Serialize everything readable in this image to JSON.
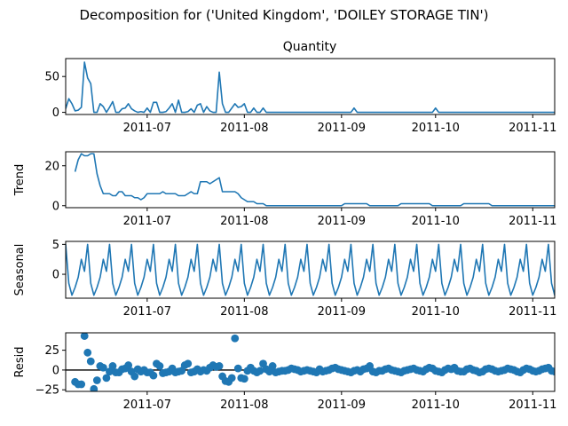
{
  "figure": {
    "suptitle": "Decomposition for ('United Kingdom', 'DOILEY STORAGE TIN')",
    "line_color": "#1f77b4",
    "x_ticks": [
      "2011-07",
      "2011-08",
      "2011-09",
      "2011-10",
      "2011-11"
    ],
    "x_tick_values": [
      "2011-07-01",
      "2011-08-01",
      "2011-09-01",
      "2011-10-01",
      "2011-11-01"
    ]
  },
  "chart_data": [
    {
      "type": "line",
      "title": "Quantity",
      "ylabel": "",
      "x_start": "2011-06-05",
      "x_end": "2011-11-08",
      "xlim": [
        "2011-06-05",
        "2011-11-08"
      ],
      "ylim": [
        -3,
        75
      ],
      "yticks": [
        0,
        50
      ],
      "ytick_labels": [
        "0",
        "50"
      ],
      "series": [
        {
          "values": [
            5,
            19,
            12,
            2,
            3,
            7,
            70,
            48,
            40,
            0,
            0,
            12,
            8,
            0,
            7,
            15,
            0,
            0,
            5,
            6,
            12,
            5,
            2,
            0,
            1,
            0,
            6,
            0,
            14,
            14,
            0,
            0,
            1,
            6,
            12,
            0,
            17,
            0,
            0,
            1,
            5,
            0,
            10,
            12,
            0,
            8,
            2,
            0,
            0,
            56,
            12,
            0,
            0,
            6,
            12,
            7,
            8,
            12,
            0,
            0,
            6,
            0,
            0,
            6,
            0,
            0,
            0,
            0,
            0,
            0,
            0,
            0,
            0,
            0,
            0,
            0,
            0,
            0,
            0,
            0,
            0,
            0,
            0,
            0,
            0,
            0,
            0,
            0,
            0,
            0,
            0,
            0,
            6,
            0,
            0,
            0,
            0,
            0,
            0,
            0,
            0,
            0,
            0,
            0,
            0,
            0,
            0,
            0,
            0,
            0,
            0,
            0,
            0,
            0,
            0,
            0,
            0,
            0,
            6,
            0,
            0,
            0,
            0,
            0,
            0,
            0,
            0,
            0,
            0,
            0,
            0,
            0,
            0,
            0,
            0,
            0,
            0,
            0,
            0,
            0,
            0,
            0,
            0,
            0,
            0,
            0,
            0,
            0,
            0,
            0,
            0,
            0,
            0,
            0,
            0,
            0,
            0,
            0,
            0,
            0,
            0,
            0,
            0,
            0,
            0,
            0,
            0,
            0,
            0,
            0,
            0,
            0,
            0,
            0,
            0,
            0,
            0,
            0,
            0,
            0,
            0,
            0,
            0,
            0,
            0,
            0,
            0,
            0,
            0,
            0,
            0,
            0,
            0,
            0,
            0,
            0,
            0,
            6
          ]
        }
      ]
    },
    {
      "type": "line",
      "title": "",
      "ylabel": "Trend",
      "x_start": "2011-06-08",
      "x_end": "2011-11-05",
      "xlim": [
        "2011-06-05",
        "2011-11-08"
      ],
      "ylim": [
        -1,
        27
      ],
      "yticks": [
        0,
        20
      ],
      "ytick_labels": [
        "0",
        "20"
      ],
      "series": [
        {
          "values": [
            17,
            23,
            26,
            25,
            25,
            26,
            26,
            16,
            10,
            6,
            6,
            6,
            5,
            5,
            7,
            7,
            5,
            5,
            5,
            4,
            4,
            3,
            4,
            6,
            6,
            6,
            6,
            6,
            7,
            6,
            6,
            6,
            6,
            5,
            5,
            5,
            6,
            7,
            6,
            6,
            12,
            12,
            12,
            11,
            12,
            13,
            14,
            7,
            7,
            7,
            7,
            7,
            6,
            4,
            3,
            2,
            2,
            2,
            1,
            1,
            1,
            0,
            0,
            0,
            0,
            0,
            0,
            0,
            0,
            0,
            0,
            0,
            0,
            0,
            0,
            0,
            0,
            0,
            0,
            0,
            0,
            0,
            0,
            0,
            0,
            0,
            1,
            1,
            1,
            1,
            1,
            1,
            1,
            1,
            0,
            0,
            0,
            0,
            0,
            0,
            0,
            0,
            0,
            0,
            1,
            1,
            1,
            1,
            1,
            1,
            1,
            1,
            1,
            1,
            0,
            0,
            0,
            0,
            0,
            0,
            0,
            0,
            0,
            0,
            1,
            1,
            1,
            1,
            1,
            1,
            1,
            1,
            1,
            0,
            0,
            0,
            0,
            0,
            0,
            0,
            0,
            0,
            0,
            0,
            0,
            0,
            0,
            0,
            0,
            0,
            0,
            0,
            0,
            0,
            0,
            0,
            0,
            0,
            0,
            0,
            0,
            0,
            0,
            0,
            0,
            0,
            0,
            0,
            0,
            0,
            0,
            0,
            0,
            0,
            0,
            0,
            0,
            0,
            0,
            0,
            0,
            0,
            0,
            0,
            0,
            0,
            0,
            0,
            0,
            0,
            1
          ]
        }
      ]
    },
    {
      "type": "line",
      "title": "",
      "ylabel": "Seasonal",
      "x_start": "2011-06-05",
      "x_end": "2011-11-08",
      "xlim": [
        "2011-06-05",
        "2011-11-08"
      ],
      "ylim": [
        -4,
        5.5
      ],
      "yticks": [
        0,
        5
      ],
      "ytick_labels": [
        "0",
        "5"
      ],
      "pattern": [
        5,
        -1.5,
        -3.5,
        -2.2,
        -0.5,
        2.5,
        0.5
      ],
      "series": [
        {
          "values": [
            5,
            -1.5,
            -3.5,
            -2.2,
            -0.5,
            2.5,
            0.5,
            5,
            -1.5,
            -3.5,
            -2.2,
            -0.5,
            2.5,
            0.5,
            5,
            -1.5,
            -3.5,
            -2.2,
            -0.5,
            2.5,
            0.5,
            5,
            -1.5,
            -3.5,
            -2.2,
            -0.5,
            2.5,
            0.5,
            5,
            -1.5,
            -3.5,
            -2.2,
            -0.5,
            2.5,
            0.5,
            5,
            -1.5,
            -3.5,
            -2.2,
            -0.5,
            2.5,
            0.5,
            5,
            -1.5,
            -3.5,
            -2.2,
            -0.5,
            2.5,
            0.5,
            5,
            -1.5,
            -3.5,
            -2.2,
            -0.5,
            2.5,
            0.5,
            5,
            -1.5,
            -3.5,
            -2.2,
            -0.5,
            2.5,
            0.5,
            5,
            -1.5,
            -3.5,
            -2.2,
            -0.5,
            2.5,
            0.5,
            5,
            -1.5,
            -3.5,
            -2.2,
            -0.5,
            2.5,
            0.5,
            5,
            -1.5,
            -3.5,
            -2.2,
            -0.5,
            2.5,
            0.5,
            5,
            -1.5,
            -3.5,
            -2.2,
            -0.5,
            2.5,
            0.5,
            5,
            -1.5,
            -3.5,
            -2.2,
            -0.5,
            2.5,
            0.5,
            5,
            -1.5,
            -3.5,
            -2.2,
            -0.5,
            2.5,
            0.5,
            5,
            -1.5,
            -3.5,
            -2.2,
            -0.5,
            2.5,
            0.5,
            5,
            -1.5,
            -3.5,
            -2.2,
            -0.5,
            2.5,
            0.5,
            5,
            -1.5,
            -3.5,
            -2.2,
            -0.5,
            2.5,
            0.5,
            5,
            -1.5,
            -3.5,
            -2.2,
            -0.5,
            2.5,
            0.5,
            5,
            -1.5,
            -3.5,
            -2.2,
            -0.5,
            2.5,
            0.5,
            5,
            -1.5,
            -3.5,
            -2.2,
            -0.5,
            2.5,
            0.5,
            5,
            -1.5,
            -3.5,
            -2.2,
            -0.5,
            2.5,
            0.5,
            5,
            -1.5,
            -3.5,
            -2.2,
            -0.5,
            2.5,
            0.5,
            5,
            -1.5,
            -3.5,
            -2.2,
            -0.5,
            2.5,
            0.5,
            5,
            -1.5,
            -3.5,
            -2.2,
            -0.5,
            2.5,
            0.5,
            5,
            -1.5,
            -3.5,
            -2.2,
            -0.5,
            2.5,
            0.5,
            5,
            -1.5,
            -3.5,
            -2.2,
            -0.5,
            2.5,
            0.5,
            5
          ]
        }
      ]
    },
    {
      "type": "scatter",
      "title": "",
      "ylabel": "Resid",
      "x_start": "2011-06-08",
      "x_end": "2011-11-05",
      "xlim": [
        "2011-06-05",
        "2011-11-08"
      ],
      "ylim": [
        -27,
        47
      ],
      "yticks": [
        -25,
        0,
        25
      ],
      "ytick_labels": [
        "−25",
        "0",
        "25"
      ],
      "zero_line": true,
      "series": [
        {
          "values": [
            -15,
            -18,
            -18,
            43,
            22,
            11,
            -24,
            -13,
            5,
            3,
            -10,
            -2,
            5,
            -3,
            -3,
            1,
            2,
            6,
            -2,
            -8,
            1,
            -2,
            0,
            -3,
            -3,
            -7,
            8,
            5,
            -4,
            -3,
            -2,
            2,
            -3,
            -2,
            -1,
            6,
            8,
            -3,
            -2,
            1,
            -2,
            0,
            -1,
            3,
            6,
            4,
            5,
            -8,
            -14,
            -15,
            -10,
            40,
            2,
            -10,
            -11,
            -1,
            3,
            -1,
            -3,
            -1,
            8,
            1,
            -2,
            5,
            -3,
            -2,
            -1,
            -1,
            0,
            2,
            1,
            0,
            -2,
            -1,
            0,
            -1,
            -2,
            -3,
            1,
            -2,
            -1,
            0,
            2,
            3,
            1,
            0,
            -1,
            -2,
            -3,
            -1,
            0,
            -2,
            1,
            2,
            5,
            -2,
            -3,
            -1,
            -1,
            1,
            2,
            0,
            -1,
            -2,
            -3,
            -1,
            0,
            1,
            2,
            0,
            -1,
            -2,
            1,
            3,
            2,
            -1,
            -2,
            -3,
            0,
            2,
            1,
            3,
            -1,
            -2,
            -2,
            1,
            2,
            0,
            -1,
            -3,
            -2,
            1,
            2,
            1,
            -1,
            -2,
            -1,
            0,
            2,
            1,
            0,
            -2,
            -3,
            0,
            2,
            1,
            -1,
            -2,
            -1,
            1,
            2,
            3,
            -1,
            -2,
            -2,
            1,
            2,
            0,
            -1,
            -2,
            -1,
            2,
            3,
            1,
            -1,
            -2,
            -1,
            0,
            1,
            2,
            0,
            -2,
            -3,
            -1,
            2,
            3,
            1,
            -1,
            -2,
            -1
          ]
        }
      ]
    }
  ]
}
